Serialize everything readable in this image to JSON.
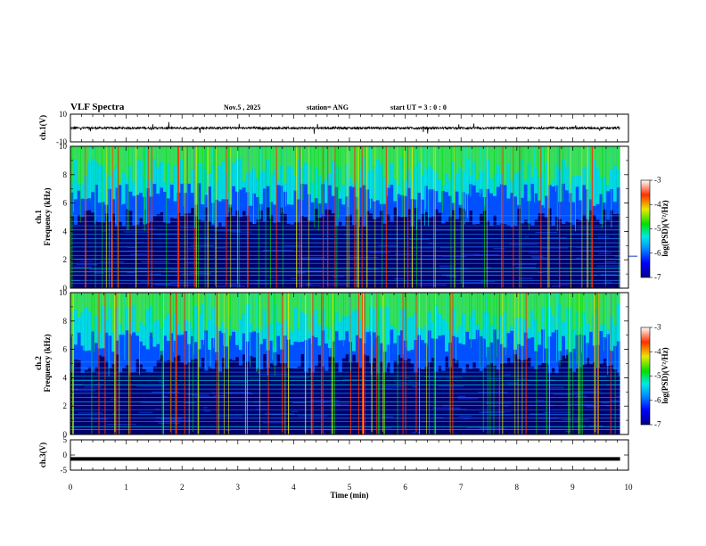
{
  "header": {
    "title": "VLF Spectra",
    "date": "Nov.5 , 2025",
    "station": "station= ANG",
    "start": "start UT = 3 : 0 : 0"
  },
  "chart_data": [
    {
      "type": "line",
      "name": "ch1-waveform",
      "ylabel": "ch.1(V)",
      "ylim": [
        -10,
        10
      ],
      "yticks": [
        10,
        -10
      ],
      "baseline": 0,
      "color": "#000000"
    },
    {
      "type": "heatmap",
      "name": "ch1-spectrogram",
      "ylabel_top": "ch.1",
      "ylabel": "Frequency (kHz)",
      "ylim": [
        0,
        10
      ],
      "yticks": [
        0,
        2,
        4,
        6,
        8,
        10
      ],
      "colorbar": {
        "label": "log(PSD)(V²/Hz)",
        "range": [
          -7,
          -3
        ],
        "ticks": [
          -3,
          -4,
          -5,
          -6,
          -7
        ]
      }
    },
    {
      "type": "heatmap",
      "name": "ch2-spectrogram",
      "ylabel_top": "ch.2",
      "ylabel": "Frequency (kHz)",
      "ylim": [
        0,
        10
      ],
      "yticks": [
        0,
        2,
        4,
        6,
        8,
        10
      ],
      "colorbar": {
        "label": "log(PSD)(V²/Hz)",
        "range": [
          -7,
          -3
        ],
        "ticks": [
          -3,
          -4,
          -5,
          -6,
          -7
        ]
      }
    },
    {
      "type": "line",
      "name": "ch3-waveform",
      "ylabel": "ch.3(V)",
      "ylim": [
        -5,
        5
      ],
      "yticks": [
        5,
        0,
        -5
      ],
      "baseline": -1.3,
      "color": "#000000"
    }
  ],
  "xaxis": {
    "label": "Time (min)",
    "xlim": [
      0,
      10
    ],
    "ticks": [
      0,
      1,
      2,
      3,
      4,
      5,
      6,
      7,
      8,
      9,
      10
    ],
    "data_end": 9.85
  }
}
